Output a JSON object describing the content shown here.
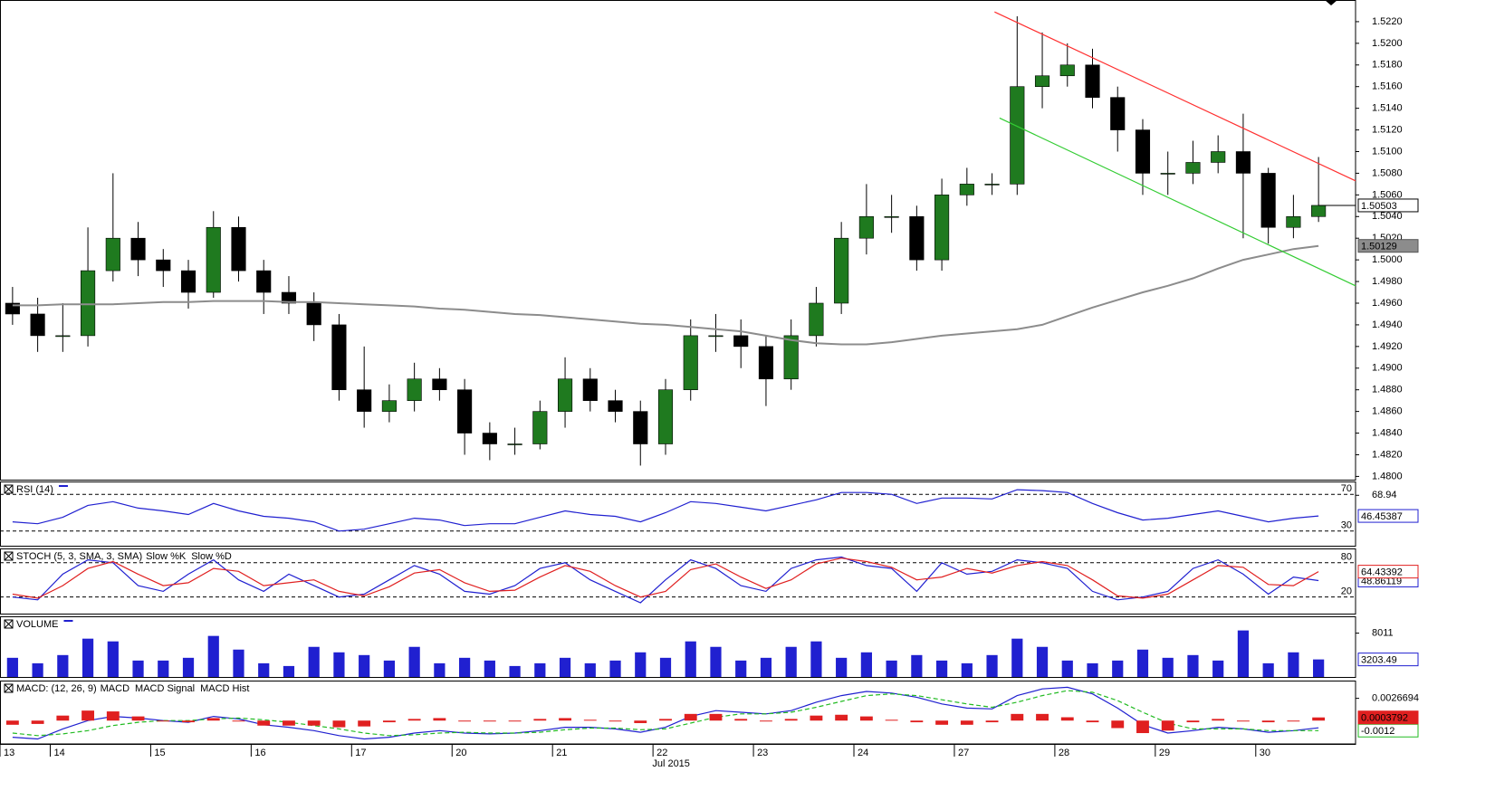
{
  "chart_data": [
    {
      "type": "candlestick",
      "open": [
        1.496,
        1.495,
        1.493,
        1.493,
        1.499,
        1.502,
        1.5,
        1.499,
        1.497,
        1.503,
        1.499,
        1.497,
        1.496,
        1.494,
        1.488,
        1.486,
        1.487,
        1.489,
        1.488,
        1.484,
        1.483,
        1.483,
        1.486,
        1.489,
        1.487,
        1.486,
        1.483,
        1.488,
        1.493,
        1.493,
        1.492,
        1.489,
        1.493,
        1.496,
        1.502,
        1.504,
        1.504,
        1.5,
        1.506,
        1.507,
        1.507,
        1.516,
        1.517,
        1.518,
        1.515,
        1.512,
        1.508,
        1.508,
        1.509,
        1.51,
        1.508,
        1.503,
        1.504
      ],
      "high": [
        1.4975,
        1.4965,
        1.496,
        1.503,
        1.508,
        1.5035,
        1.501,
        1.5,
        1.5045,
        1.504,
        1.5,
        1.4985,
        1.497,
        1.495,
        1.492,
        1.4885,
        1.4905,
        1.49,
        1.489,
        1.485,
        1.4845,
        1.487,
        1.491,
        1.49,
        1.488,
        1.487,
        1.489,
        1.4945,
        1.495,
        1.4945,
        1.493,
        1.4945,
        1.4975,
        1.5035,
        1.507,
        1.506,
        1.505,
        1.5075,
        1.5085,
        1.508,
        1.5225,
        1.521,
        1.52,
        1.5195,
        1.516,
        1.513,
        1.51,
        1.511,
        1.5115,
        1.5135,
        1.5085,
        1.506,
        1.5095
      ],
      "low": [
        1.494,
        1.4915,
        1.4915,
        1.492,
        1.498,
        1.4985,
        1.4975,
        1.4955,
        1.4965,
        1.498,
        1.495,
        1.495,
        1.4925,
        1.487,
        1.4845,
        1.485,
        1.486,
        1.487,
        1.482,
        1.4815,
        1.482,
        1.4825,
        1.4845,
        1.486,
        1.485,
        1.481,
        1.482,
        1.487,
        1.4915,
        1.49,
        1.4865,
        1.488,
        1.492,
        1.495,
        1.5005,
        1.5025,
        1.499,
        1.499,
        1.505,
        1.506,
        1.506,
        1.514,
        1.516,
        1.514,
        1.51,
        1.506,
        1.506,
        1.507,
        1.508,
        1.502,
        1.5015,
        1.502,
        1.5035
      ],
      "close": [
        1.495,
        1.493,
        1.493,
        1.499,
        1.502,
        1.5,
        1.499,
        1.497,
        1.503,
        1.499,
        1.497,
        1.496,
        1.494,
        1.488,
        1.486,
        1.487,
        1.489,
        1.488,
        1.484,
        1.483,
        1.483,
        1.486,
        1.489,
        1.487,
        1.486,
        1.483,
        1.488,
        1.493,
        1.493,
        1.492,
        1.489,
        1.493,
        1.496,
        1.502,
        1.504,
        1.504,
        1.5,
        1.506,
        1.507,
        1.507,
        1.516,
        1.517,
        1.518,
        1.515,
        1.512,
        1.508,
        1.508,
        1.509,
        1.51,
        1.508,
        1.503,
        1.504,
        1.50503
      ],
      "up_color": "#1f7a1f",
      "down_color": "#000000",
      "ylim": [
        1.4797,
        1.524
      ],
      "yticks": [
        {
          "value": 1.48,
          "label": "1.4800"
        },
        {
          "value": 1.482,
          "label": "1.4820"
        },
        {
          "value": 1.484,
          "label": "1.4840"
        },
        {
          "value": 1.486,
          "label": "1.4860"
        },
        {
          "value": 1.488,
          "label": "1.4880"
        },
        {
          "value": 1.49,
          "label": "1.4900"
        },
        {
          "value": 1.492,
          "label": "1.4920"
        },
        {
          "value": 1.494,
          "label": "1.4940"
        },
        {
          "value": 1.496,
          "label": "1.4960"
        },
        {
          "value": 1.498,
          "label": "1.4980"
        },
        {
          "value": 1.5,
          "label": "1.5000"
        },
        {
          "value": 1.502,
          "label": "1.5020"
        },
        {
          "value": 1.504,
          "label": "1.5040"
        },
        {
          "value": 1.506,
          "label": "1.5060"
        },
        {
          "value": 1.508,
          "label": "1.5080"
        },
        {
          "value": 1.51,
          "label": "1.5100"
        },
        {
          "value": 1.512,
          "label": "1.5120"
        },
        {
          "value": 1.514,
          "label": "1.5140"
        },
        {
          "value": 1.516,
          "label": "1.5160"
        },
        {
          "value": 1.518,
          "label": "1.5180"
        },
        {
          "value": 1.52,
          "label": "1.5200"
        },
        {
          "value": 1.522,
          "label": "1.5220"
        }
      ],
      "series": [
        {
          "color": "#8c8c8c",
          "values": [
            1.4958,
            1.4958,
            1.4959,
            1.4959,
            1.4959,
            1.496,
            1.4961,
            1.4961,
            1.4962,
            1.4962,
            1.4962,
            1.4961,
            1.4961,
            1.496,
            1.4959,
            1.4958,
            1.4957,
            1.4955,
            1.4954,
            1.4952,
            1.495,
            1.4949,
            1.4947,
            1.4945,
            1.4943,
            1.4941,
            1.494,
            1.4938,
            1.4936,
            1.4934,
            1.493,
            1.4926,
            1.4923,
            1.4922,
            1.4922,
            1.4924,
            1.4927,
            1.493,
            1.4932,
            1.4934,
            1.4936,
            1.494,
            1.4948,
            1.4956,
            1.4963,
            1.497,
            1.4976,
            1.4983,
            1.4992,
            1.5,
            1.5005,
            1.501,
            1.50129
          ]
        }
      ],
      "trendlines": [
        {
          "color": "#ff3030",
          "x": [
            39.6,
            54
          ],
          "y": [
            1.5229,
            1.5073
          ]
        },
        {
          "color": "#33cc33",
          "x": [
            39.8,
            54
          ],
          "y": [
            1.5131,
            1.4976
          ]
        }
      ]
    },
    {
      "type": "line",
      "title": "RSI (14)",
      "ylim": [
        14,
        84
      ],
      "yticks": [
        68.94
      ],
      "levels": [
        70,
        30
      ],
      "series": [
        {
          "color": "#2020d0",
          "values": [
            40,
            38,
            45,
            58,
            62,
            55,
            52,
            48,
            60,
            52,
            46,
            44,
            40,
            30,
            32,
            38,
            44,
            42,
            36,
            38,
            38,
            45,
            52,
            48,
            46,
            40,
            50,
            62,
            60,
            56,
            52,
            58,
            64,
            72,
            72,
            70,
            60,
            66,
            66,
            65,
            75,
            74,
            72,
            60,
            50,
            42,
            44,
            48,
            52,
            46,
            40,
            44,
            46.45387
          ]
        }
      ]
    },
    {
      "type": "line",
      "title": "STOCH (5, 3, SMA, 3, SMA)",
      "ylim": [
        -9,
        105
      ],
      "levels": [
        80,
        20
      ],
      "series": [
        {
          "name": "Slow %K",
          "color": "#2020d0",
          "values": [
            20,
            15,
            60,
            85,
            80,
            40,
            30,
            60,
            85,
            50,
            30,
            60,
            40,
            20,
            25,
            50,
            75,
            60,
            30,
            25,
            40,
            70,
            80,
            50,
            30,
            10,
            50,
            85,
            70,
            40,
            30,
            70,
            85,
            90,
            75,
            70,
            30,
            80,
            60,
            65,
            85,
            80,
            70,
            30,
            15,
            20,
            30,
            70,
            85,
            60,
            25,
            55,
            48.86119
          ]
        },
        {
          "name": "Slow %D",
          "color": "#e02020",
          "values": [
            25,
            18,
            40,
            70,
            82,
            60,
            40,
            45,
            70,
            65,
            40,
            45,
            50,
            30,
            22,
            38,
            62,
            68,
            45,
            30,
            32,
            55,
            75,
            65,
            40,
            20,
            30,
            68,
            78,
            55,
            35,
            50,
            78,
            88,
            82,
            72,
            50,
            55,
            70,
            62,
            75,
            82,
            75,
            50,
            22,
            18,
            25,
            50,
            75,
            72,
            42,
            40,
            64.43392
          ]
        }
      ]
    },
    {
      "type": "bar",
      "title": "VOLUME",
      "ylim": [
        0,
        11080
      ],
      "yticks": [
        8011
      ],
      "color": "#2020d0",
      "values": [
        3500,
        2500,
        4000,
        7000,
        6500,
        3000,
        3000,
        3500,
        7500,
        5000,
        2500,
        2000,
        5500,
        4500,
        4000,
        3000,
        5500,
        2500,
        3500,
        3000,
        2000,
        2500,
        3500,
        2500,
        3000,
        4500,
        3500,
        6500,
        5500,
        3000,
        3500,
        5500,
        6500,
        3500,
        4500,
        3000,
        4000,
        3000,
        2500,
        4000,
        7000,
        5500,
        3000,
        2500,
        3000,
        5000,
        3500,
        4000,
        3000,
        8500,
        2500,
        4500,
        3203.49
      ]
    },
    {
      "type": "line",
      "title": "MACD: (12, 26, 9)",
      "ylim": [
        -0.0028,
        0.0048
      ],
      "yticks": [
        0.0026694
      ],
      "series": [
        {
          "name": "MACD",
          "color": "#2020d0",
          "style": "line",
          "values": [
            -0.002,
            -0.0022,
            -0.001,
            0.0,
            0.0005,
            0.0003,
            0.0,
            -0.0002,
            0.0005,
            0.0002,
            -0.0005,
            -0.0008,
            -0.0012,
            -0.0018,
            -0.0022,
            -0.002,
            -0.0015,
            -0.0012,
            -0.0015,
            -0.0016,
            -0.0015,
            -0.0012,
            -0.0008,
            -0.0008,
            -0.001,
            -0.0014,
            -0.0008,
            0.0005,
            0.0012,
            0.001,
            0.0008,
            0.0012,
            0.0022,
            0.003,
            0.0035,
            0.0033,
            0.0028,
            0.002,
            0.0015,
            0.0014,
            0.003,
            0.0038,
            0.004,
            0.0032,
            0.0015,
            -0.0005,
            -0.0015,
            -0.0012,
            -0.0008,
            -0.001,
            -0.0014,
            -0.0012,
            -0.0008642
          ]
        },
        {
          "name": "MACD Signal",
          "color": "#22bb22",
          "style": "dashed",
          "values": [
            -0.0015,
            -0.0018,
            -0.0016,
            -0.0012,
            -0.0006,
            -0.0002,
            0.0,
            0.0,
            0.0002,
            0.0003,
            0.0001,
            -0.0002,
            -0.0006,
            -0.001,
            -0.0015,
            -0.0018,
            -0.0017,
            -0.0015,
            -0.0014,
            -0.0015,
            -0.0015,
            -0.0014,
            -0.0011,
            -0.0009,
            -0.0009,
            -0.0011,
            -0.001,
            -0.0003,
            0.0004,
            0.0008,
            0.0008,
            0.001,
            0.0016,
            0.0023,
            0.003,
            0.0032,
            0.003,
            0.0025,
            0.002,
            0.0016,
            0.0022,
            0.003,
            0.0036,
            0.0034,
            0.0024,
            0.001,
            -0.0003,
            -0.001,
            -0.001,
            -0.001,
            -0.0012,
            -0.0012,
            -0.0012
          ]
        },
        {
          "name": "MACD Hist",
          "color": "#e02020",
          "style": "bar",
          "values": [
            -0.0005,
            -0.0004,
            0.0006,
            0.0012,
            0.0011,
            0.0005,
            0.0,
            -0.0002,
            0.0003,
            -0.0001,
            -0.0006,
            -0.0006,
            -0.0006,
            -0.0008,
            -0.0007,
            -0.0002,
            0.0002,
            0.0003,
            -0.0001,
            -0.0001,
            0.0,
            0.0002,
            0.0003,
            0.0001,
            -0.0001,
            -0.0003,
            0.0002,
            0.0008,
            0.0008,
            0.0002,
            0.0,
            0.0002,
            0.0006,
            0.0007,
            0.0005,
            0.0001,
            -0.0002,
            -0.0005,
            -0.0005,
            -0.0002,
            0.0008,
            0.0008,
            0.0004,
            -0.0002,
            -0.0009,
            -0.0015,
            -0.0012,
            -0.0002,
            0.0002,
            0.0,
            -0.0002,
            0.0,
            0.0003792
          ]
        }
      ],
      "xticks": [
        {
          "value": 0,
          "label": "13"
        },
        {
          "value": 2,
          "label": "14"
        },
        {
          "value": 6,
          "label": "15"
        },
        {
          "value": 10,
          "label": "16"
        },
        {
          "value": 14,
          "label": "17"
        },
        {
          "value": 18,
          "label": "20"
        },
        {
          "value": 22,
          "label": "21"
        },
        {
          "value": 26,
          "label": "22"
        },
        {
          "value": 30,
          "label": "23"
        },
        {
          "value": 34,
          "label": "24"
        },
        {
          "value": 38,
          "label": "27"
        },
        {
          "value": 42,
          "label": "28"
        },
        {
          "value": 46,
          "label": "29"
        },
        {
          "value": 50,
          "label": "30"
        }
      ],
      "x_label": "Jul 2015"
    }
  ]
}
